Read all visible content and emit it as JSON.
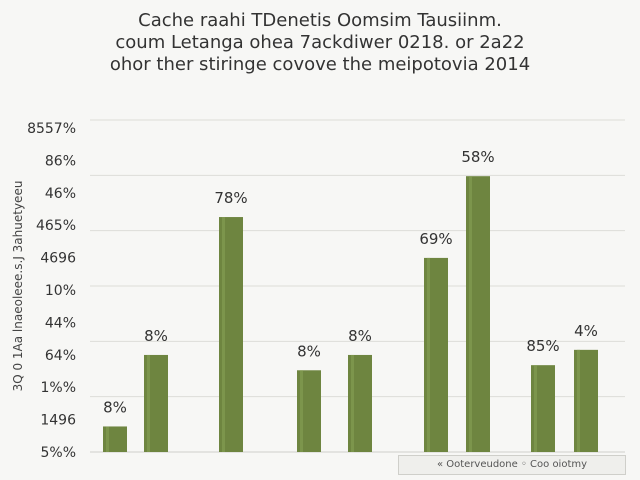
{
  "title_lines": [
    "Cache raahi TDenetis Oomsim Tausiinm.",
    "coum Letanga ohea 7ackdiwer 0218. or 2a22",
    "ohor ther stiringe covove the meipotovia 2014"
  ],
  "legend_text": "« Ooterveudone ◦ Coo oiotmy",
  "chart_data": {
    "type": "bar",
    "title": "",
    "ylabel_rotated": "3Q 0 1Aa lnaeoleee.s.J 3ahuetyeeu",
    "ytick_labels": [
      "8557%",
      "86%",
      "46%",
      "465%",
      "4696",
      "10%",
      "44%",
      "64%",
      "1%%",
      "1496",
      "5%%"
    ],
    "bars": [
      {
        "value": 5,
        "label": "8%",
        "group": 1
      },
      {
        "value": 19,
        "label": "8%",
        "group": 1
      },
      {
        "value": 46,
        "label": "78%",
        "group": 2
      },
      {
        "value": 16,
        "label": "8%",
        "group": 3
      },
      {
        "value": 19,
        "label": "8%",
        "group": 3
      },
      {
        "value": 38,
        "label": "69%",
        "group": 4
      },
      {
        "value": 54,
        "label": "58%",
        "group": 4
      },
      {
        "value": 17,
        "label": "85%",
        "group": 5
      },
      {
        "value": 20,
        "label": "4%",
        "group": 5
      }
    ],
    "ylim": [
      0,
      65
    ],
    "bar_color": "#6e8540",
    "grid": true,
    "legend_position": "bottom-right"
  }
}
